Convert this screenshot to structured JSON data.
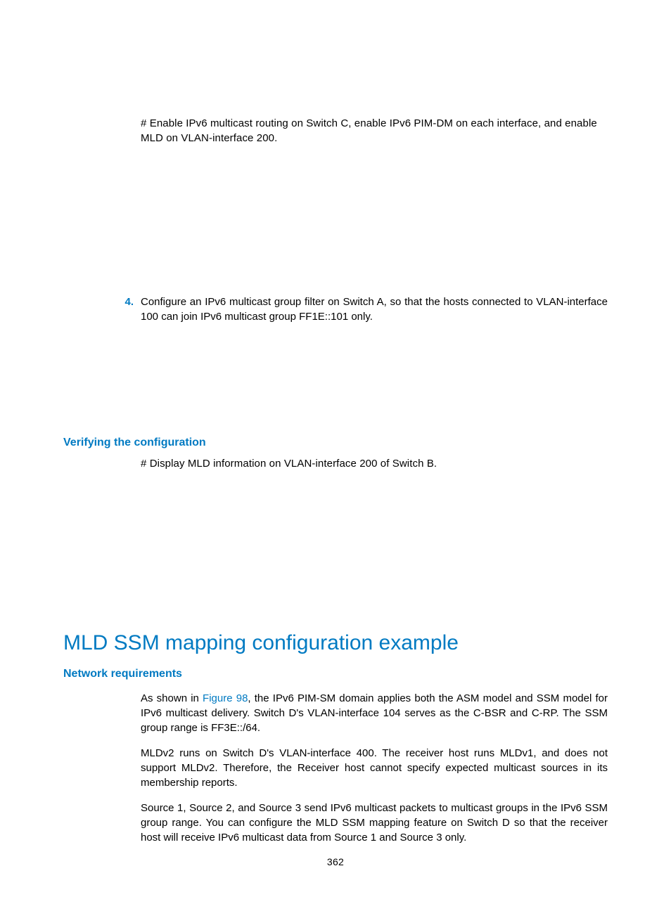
{
  "colors": {
    "accent": "#007ac2",
    "text": "#000000",
    "background": "#ffffff"
  },
  "typography": {
    "body_fontsize": 15,
    "subhead_fontsize": 16,
    "h2_fontsize": 30
  },
  "intro_para": "# Enable IPv6 multicast routing on Switch C, enable IPv6 PIM-DM on each interface, and enable MLD on VLAN-interface 200.",
  "step4": {
    "marker": "4.",
    "text": "Configure an IPv6 multicast group filter on Switch A, so that the hosts connected to VLAN-interface 100 can join IPv6 multicast group FF1E::101 only."
  },
  "verify": {
    "heading": "Verifying the configuration",
    "text": "# Display MLD information on VLAN-interface 200 of Switch B."
  },
  "section": {
    "title": "MLD SSM mapping configuration example",
    "netreq_heading": "Network requirements",
    "p1_pre": "As shown in ",
    "p1_link": "Figure 98",
    "p1_post": ", the IPv6 PIM-SM domain applies both the ASM model and SSM model for IPv6 multicast delivery. Switch D's VLAN-interface 104 serves as the C-BSR and C-RP. The SSM group range is FF3E::/64.",
    "p2": "MLDv2 runs on Switch D's VLAN-interface 400. The receiver host runs MLDv1, and does not support MLDv2. Therefore, the Receiver host cannot specify expected multicast sources in its membership reports.",
    "p3": "Source 1, Source 2, and Source 3 send IPv6 multicast packets to multicast groups in the IPv6 SSM group range. You can configure the MLD SSM mapping feature on Switch D so that the receiver host will receive IPv6 multicast data from Source 1 and Source 3 only."
  },
  "page_number": "362"
}
